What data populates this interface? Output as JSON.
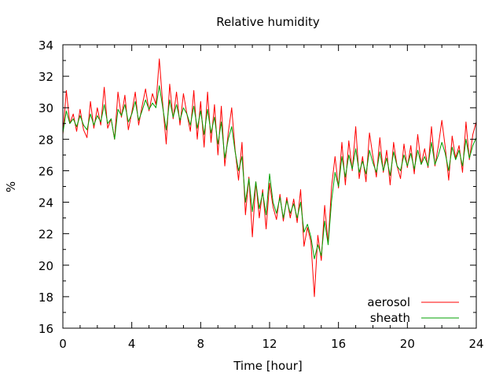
{
  "chart_data": {
    "type": "line",
    "title": "Relative humidity",
    "xlabel": "Time [hour]",
    "ylabel": "%",
    "xlim": [
      0,
      24
    ],
    "ylim": [
      16,
      34
    ],
    "xticks": [
      0,
      4,
      8,
      12,
      16,
      20,
      24
    ],
    "yticks": [
      16,
      18,
      20,
      22,
      24,
      26,
      28,
      30,
      32,
      34
    ],
    "grid": false,
    "legend_position": "bottom-right",
    "series": [
      {
        "name": "aerosol",
        "color": "#ff0000",
        "x": [
          0,
          0.2,
          0.4,
          0.6,
          0.8,
          1.0,
          1.2,
          1.4,
          1.6,
          1.8,
          2.0,
          2.2,
          2.4,
          2.6,
          2.8,
          3.0,
          3.2,
          3.4,
          3.6,
          3.8,
          4.0,
          4.2,
          4.4,
          4.6,
          4.8,
          5.0,
          5.2,
          5.4,
          5.6,
          5.8,
          6.0,
          6.2,
          6.4,
          6.6,
          6.8,
          7.0,
          7.2,
          7.4,
          7.6,
          7.8,
          8.0,
          8.2,
          8.4,
          8.6,
          8.8,
          9.0,
          9.2,
          9.4,
          9.6,
          9.8,
          10.0,
          10.2,
          10.4,
          10.6,
          10.8,
          11.0,
          11.2,
          11.4,
          11.6,
          11.8,
          12.0,
          12.2,
          12.4,
          12.6,
          12.8,
          13.0,
          13.2,
          13.4,
          13.6,
          13.8,
          14.0,
          14.2,
          14.4,
          14.6,
          14.8,
          15.0,
          15.2,
          15.4,
          15.6,
          15.8,
          16.0,
          16.2,
          16.4,
          16.6,
          16.8,
          17.0,
          17.2,
          17.4,
          17.6,
          17.8,
          18.0,
          18.2,
          18.4,
          18.6,
          18.8,
          19.0,
          19.2,
          19.4,
          19.6,
          19.8,
          20.0,
          20.2,
          20.4,
          20.6,
          20.8,
          21.0,
          21.2,
          21.4,
          21.6,
          21.8,
          22.0,
          22.2,
          22.4,
          22.6,
          22.8,
          23.0,
          23.2,
          23.4,
          23.6,
          23.8,
          24.0
        ],
        "values": [
          28.3,
          31.1,
          29.0,
          29.6,
          28.5,
          29.9,
          28.6,
          28.1,
          30.4,
          28.7,
          30.0,
          28.9,
          31.3,
          28.7,
          29.3,
          28.0,
          31.0,
          29.4,
          30.8,
          28.6,
          29.7,
          31.0,
          28.9,
          30.1,
          31.2,
          29.8,
          30.9,
          30.2,
          33.1,
          30.2,
          27.7,
          31.5,
          29.3,
          31.0,
          28.9,
          30.9,
          29.6,
          28.5,
          31.1,
          28.0,
          30.4,
          27.5,
          31.0,
          27.8,
          30.2,
          27.0,
          30.1,
          26.3,
          28.4,
          30.0,
          27.3,
          25.4,
          27.8,
          23.2,
          25.6,
          21.8,
          25.3,
          23.0,
          24.8,
          22.3,
          25.2,
          23.7,
          22.9,
          24.5,
          22.8,
          24.3,
          23.0,
          24.2,
          22.7,
          24.8,
          21.2,
          22.4,
          21.5,
          18.0,
          21.9,
          20.3,
          23.8,
          21.4,
          25.0,
          26.9,
          24.9,
          27.8,
          25.1,
          27.9,
          26.0,
          28.8,
          25.5,
          26.9,
          25.3,
          28.4,
          26.9,
          25.6,
          28.1,
          25.9,
          27.3,
          25.1,
          27.8,
          26.3,
          25.5,
          27.7,
          26.2,
          27.6,
          25.8,
          28.3,
          26.4,
          27.4,
          26.2,
          28.8,
          26.3,
          27.6,
          29.2,
          27.5,
          25.4,
          28.2,
          26.8,
          27.6,
          25.9,
          29.1,
          26.7,
          28.3,
          29.1
        ]
      },
      {
        "name": "sheath",
        "color": "#00a000",
        "x": [
          0,
          0.2,
          0.4,
          0.6,
          0.8,
          1.0,
          1.2,
          1.4,
          1.6,
          1.8,
          2.0,
          2.2,
          2.4,
          2.6,
          2.8,
          3.0,
          3.2,
          3.4,
          3.6,
          3.8,
          4.0,
          4.2,
          4.4,
          4.6,
          4.8,
          5.0,
          5.2,
          5.4,
          5.6,
          5.8,
          6.0,
          6.2,
          6.4,
          6.6,
          6.8,
          7.0,
          7.2,
          7.4,
          7.6,
          7.8,
          8.0,
          8.2,
          8.4,
          8.6,
          8.8,
          9.0,
          9.2,
          9.4,
          9.6,
          9.8,
          10.0,
          10.2,
          10.4,
          10.6,
          10.8,
          11.0,
          11.2,
          11.4,
          11.6,
          11.8,
          12.0,
          12.2,
          12.4,
          12.6,
          12.8,
          13.0,
          13.2,
          13.4,
          13.6,
          13.8,
          14.0,
          14.2,
          14.4,
          14.6,
          14.8,
          15.0,
          15.2,
          15.4,
          15.6,
          15.8,
          16.0,
          16.2,
          16.4,
          16.6,
          16.8,
          17.0,
          17.2,
          17.4,
          17.6,
          17.8,
          18.0,
          18.2,
          18.4,
          18.6,
          18.8,
          19.0,
          19.2,
          19.4,
          19.6,
          19.8,
          20.0,
          20.2,
          20.4,
          20.6,
          20.8,
          21.0,
          21.2,
          21.4,
          21.6,
          21.8,
          22.0,
          22.2,
          22.4,
          22.6,
          22.8,
          23.0,
          23.2,
          23.4,
          23.6,
          23.8,
          24.0
        ],
        "values": [
          28.4,
          29.8,
          29.0,
          29.3,
          28.8,
          29.5,
          28.9,
          28.6,
          29.6,
          28.9,
          29.5,
          29.1,
          30.2,
          29.0,
          29.3,
          28.0,
          29.9,
          29.5,
          30.2,
          29.1,
          29.6,
          30.4,
          29.2,
          29.8,
          30.5,
          29.9,
          30.3,
          30.0,
          31.4,
          30.0,
          28.6,
          30.5,
          29.4,
          30.2,
          29.2,
          30.0,
          29.6,
          28.9,
          30.1,
          28.7,
          29.8,
          28.3,
          29.9,
          28.4,
          29.4,
          27.7,
          29.1,
          26.8,
          28.0,
          28.8,
          27.2,
          26.0,
          26.9,
          24.0,
          25.5,
          23.4,
          25.3,
          23.6,
          24.6,
          23.2,
          25.8,
          24.0,
          23.3,
          24.3,
          23.0,
          24.1,
          23.3,
          23.9,
          23.0,
          24.0,
          22.1,
          22.6,
          21.8,
          20.4,
          21.3,
          20.6,
          22.8,
          21.3,
          24.1,
          25.9,
          25.0,
          26.9,
          25.6,
          27.0,
          26.1,
          27.4,
          25.9,
          26.6,
          25.8,
          27.3,
          26.5,
          25.9,
          27.2,
          26.0,
          26.8,
          25.7,
          27.2,
          26.3,
          26.0,
          27.0,
          26.3,
          27.1,
          26.1,
          27.3,
          26.4,
          26.9,
          26.3,
          27.8,
          26.4,
          27.0,
          27.8,
          27.1,
          26.0,
          27.5,
          26.7,
          27.3,
          26.3,
          28.0,
          26.8,
          27.6,
          28.1
        ]
      }
    ]
  }
}
